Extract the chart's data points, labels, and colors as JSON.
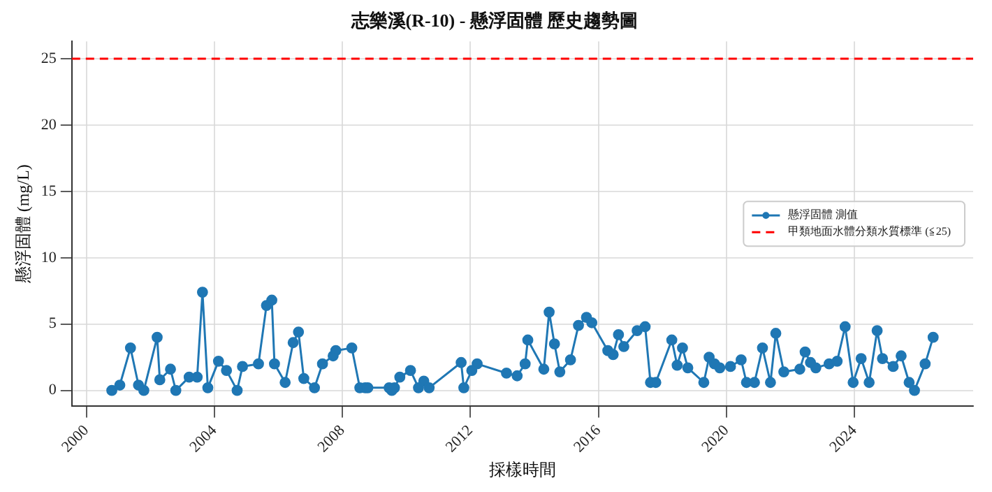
{
  "chart_data": {
    "type": "line",
    "title": "志樂溪(R-10) - 懸浮固體 歷史趨勢圖",
    "xlabel": "採樣時間",
    "ylabel": "懸浮固體 (mg/L)",
    "series": [
      {
        "name": "懸浮固體 測值",
        "color": "#1f77b4",
        "marker": "circle",
        "line_style": "solid",
        "x": [
          "2000-10",
          "2001-01",
          "2001-05",
          "2001-08",
          "2001-10",
          "2002-03",
          "2002-04",
          "2002-08",
          "2002-10",
          "2003-03",
          "2003-06",
          "2003-08",
          "2003-10",
          "2004-02",
          "2004-05",
          "2004-09",
          "2004-11",
          "2005-05",
          "2005-08",
          "2005-10",
          "2005-11",
          "2006-03",
          "2006-06",
          "2006-08",
          "2006-10",
          "2007-02",
          "2007-05",
          "2007-09",
          "2007-10",
          "2008-04",
          "2008-07",
          "2008-09",
          "2008-10",
          "2009-06",
          "2009-07",
          "2009-08",
          "2009-10",
          "2010-02",
          "2010-05",
          "2010-07",
          "2010-09",
          "2011-09",
          "2011-10",
          "2012-01",
          "2012-03",
          "2013-02",
          "2013-06",
          "2013-09",
          "2013-10",
          "2014-04",
          "2014-06",
          "2014-08",
          "2014-10",
          "2015-02",
          "2015-05",
          "2015-08",
          "2015-10",
          "2016-04",
          "2016-06",
          "2016-08",
          "2016-10",
          "2017-03",
          "2017-06",
          "2017-08",
          "2017-10",
          "2018-04",
          "2018-06",
          "2018-08",
          "2018-10",
          "2019-04",
          "2019-06",
          "2019-08",
          "2019-10",
          "2020-02",
          "2020-06",
          "2020-08",
          "2020-11",
          "2021-02",
          "2021-05",
          "2021-07",
          "2021-10",
          "2022-04",
          "2022-06",
          "2022-08",
          "2022-10",
          "2023-03",
          "2023-06",
          "2023-09",
          "2023-12",
          "2024-03",
          "2024-06",
          "2024-09",
          "2024-11",
          "2025-03",
          "2025-06",
          "2025-09",
          "2025-11",
          "2026-03",
          "2026-06"
        ],
        "values": [
          0,
          0.4,
          3.2,
          0.4,
          0,
          4.0,
          0.8,
          1.6,
          0,
          1.0,
          1.0,
          7.4,
          0.2,
          2.2,
          1.5,
          0,
          1.8,
          2.0,
          6.4,
          6.8,
          2.0,
          0.6,
          3.6,
          4.4,
          0.9,
          0.2,
          2.0,
          2.6,
          3.0,
          3.2,
          0.2,
          0.2,
          0.2,
          0.2,
          0,
          0.2,
          1.0,
          1.5,
          0.2,
          0.7,
          0.2,
          2.1,
          0.2,
          1.5,
          2.0,
          1.3,
          1.1,
          2.0,
          3.8,
          1.6,
          5.9,
          3.5,
          1.4,
          2.3,
          4.9,
          5.5,
          5.1,
          3.0,
          2.7,
          4.2,
          3.3,
          4.5,
          4.8,
          0.6,
          0.6,
          3.8,
          1.9,
          3.2,
          1.7,
          0.6,
          2.5,
          2.0,
          1.7,
          1.8,
          2.3,
          0.6,
          0.6,
          3.2,
          0.6,
          4.3,
          1.4,
          1.6,
          2.9,
          2.1,
          1.7,
          2.0,
          2.2,
          4.8,
          0.6,
          2.4,
          0.6,
          4.5,
          2.4,
          1.8,
          2.6,
          0.6,
          0,
          2.0,
          4.0
        ]
      }
    ],
    "ref_lines": [
      {
        "axis": "y",
        "value": 25,
        "label": "甲類地面水體分類水質標準 (≦25)",
        "color": "#ff0000",
        "line_style": "dashed"
      }
    ],
    "xlim": [
      "1999-07",
      "2027-09"
    ],
    "xticks": [
      {
        "value": "2000",
        "label": "2000"
      },
      {
        "value": "2004",
        "label": "2004"
      },
      {
        "value": "2008",
        "label": "2008"
      },
      {
        "value": "2012",
        "label": "2012"
      },
      {
        "value": "2016",
        "label": "2016"
      },
      {
        "value": "2020",
        "label": "2020"
      },
      {
        "value": "2024",
        "label": "2024"
      }
    ],
    "ylim": [
      -1.2,
      26.3
    ],
    "yticks": [
      0,
      5,
      10,
      15,
      20,
      25
    ],
    "grid": true,
    "legend": "right"
  }
}
